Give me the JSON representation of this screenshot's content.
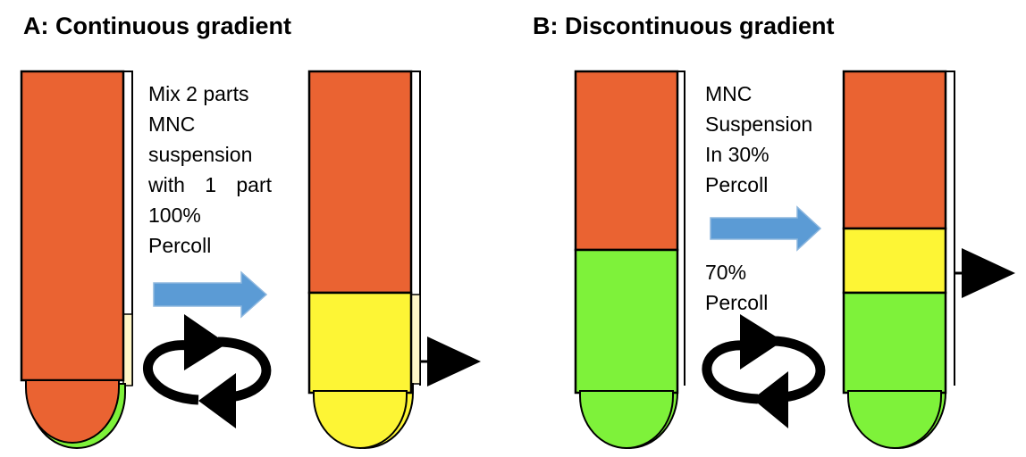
{
  "panel_a": {
    "title": "A: Continuous gradient",
    "caption_lines": [
      "Mix 2 parts",
      "MNC",
      "suspension"
    ],
    "caption_justified": [
      "with",
      "1",
      "part"
    ],
    "caption_lines_end": [
      "100%",
      "Percoll"
    ]
  },
  "panel_b": {
    "title": "B: Discontinuous gradient",
    "caption_top": [
      "MNC",
      "Suspension",
      "In 30%",
      "Percoll"
    ],
    "caption_bottom": [
      "70%",
      "Percoll"
    ]
  },
  "colors": {
    "orange": "#EA6332",
    "yellow": "#FDF535",
    "green": "#7EF23A",
    "arrow_blue": "#5B9BD5",
    "black": "#000000"
  },
  "icons": [
    "right-arrow-icon",
    "rotation-arrows-icon",
    "pointer-triangle-icon"
  ]
}
